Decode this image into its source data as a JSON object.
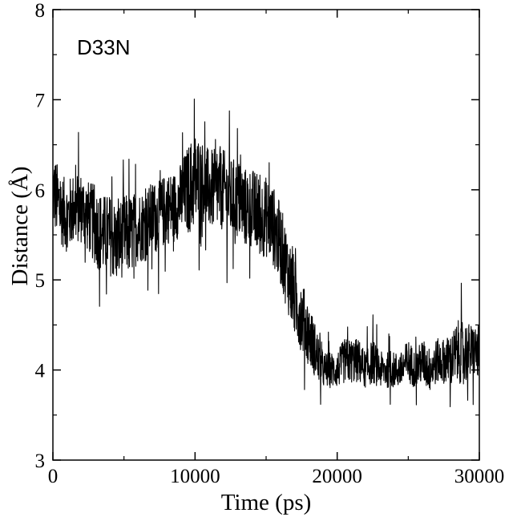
{
  "chart_data": {
    "type": "line",
    "title": "",
    "xlabel": "Time (ps)",
    "ylabel": "Distance (Å)",
    "xlim": [
      0,
      30000
    ],
    "ylim": [
      3,
      8
    ],
    "xticks": [
      0,
      10000,
      20000,
      30000
    ],
    "yticks": [
      3,
      4,
      5,
      6,
      7,
      8
    ],
    "grid": false,
    "legend": "none",
    "annotation": "D33N",
    "line_color": "#000000",
    "series": [
      {
        "x": [
          0,
          500,
          1000,
          1500,
          2000,
          2500,
          3000,
          3500,
          4000,
          4500,
          5000,
          5500,
          6000,
          6500,
          7000,
          7500,
          8000,
          8500,
          9000,
          9500,
          10000,
          10500,
          11000,
          11500,
          12000,
          12500,
          13000,
          13500,
          14000,
          14500,
          15000,
          15500,
          16000,
          16500,
          17000,
          17500,
          18000,
          18500,
          19000,
          19500,
          20000,
          20500,
          21000,
          21500,
          22000,
          22500,
          23000,
          23500,
          24000,
          24500,
          25000,
          25500,
          26000,
          26500,
          27000,
          27500,
          28000,
          28500,
          29000,
          29500,
          30000
        ],
        "values": [
          6.0,
          5.8,
          5.7,
          5.8,
          5.8,
          5.7,
          5.6,
          5.5,
          5.5,
          5.4,
          5.5,
          5.5,
          5.6,
          5.6,
          5.7,
          5.7,
          5.8,
          5.8,
          5.9,
          6.0,
          6.1,
          6.1,
          6.0,
          6.0,
          6.0,
          5.9,
          5.9,
          5.8,
          5.8,
          5.7,
          5.7,
          5.6,
          5.4,
          5.1,
          4.8,
          4.6,
          4.4,
          4.2,
          4.0,
          4.0,
          4.0,
          4.1,
          4.1,
          4.1,
          4.0,
          4.1,
          4.0,
          4.0,
          4.0,
          4.0,
          4.1,
          4.0,
          4.1,
          4.0,
          4.1,
          4.1,
          4.1,
          4.2,
          4.2,
          4.2,
          4.2
        ],
        "noise_amplitude": [
          0.45,
          0.4,
          0.4,
          0.4,
          0.4,
          0.4,
          0.45,
          0.45,
          0.45,
          0.45,
          0.45,
          0.45,
          0.4,
          0.4,
          0.4,
          0.4,
          0.4,
          0.4,
          0.4,
          0.5,
          0.55,
          0.45,
          0.45,
          0.45,
          0.45,
          0.45,
          0.45,
          0.45,
          0.45,
          0.45,
          0.45,
          0.45,
          0.45,
          0.45,
          0.45,
          0.4,
          0.35,
          0.3,
          0.2,
          0.2,
          0.2,
          0.25,
          0.25,
          0.25,
          0.2,
          0.25,
          0.2,
          0.2,
          0.2,
          0.2,
          0.25,
          0.2,
          0.25,
          0.25,
          0.25,
          0.25,
          0.3,
          0.35,
          0.35,
          0.3,
          0.3
        ]
      }
    ]
  }
}
